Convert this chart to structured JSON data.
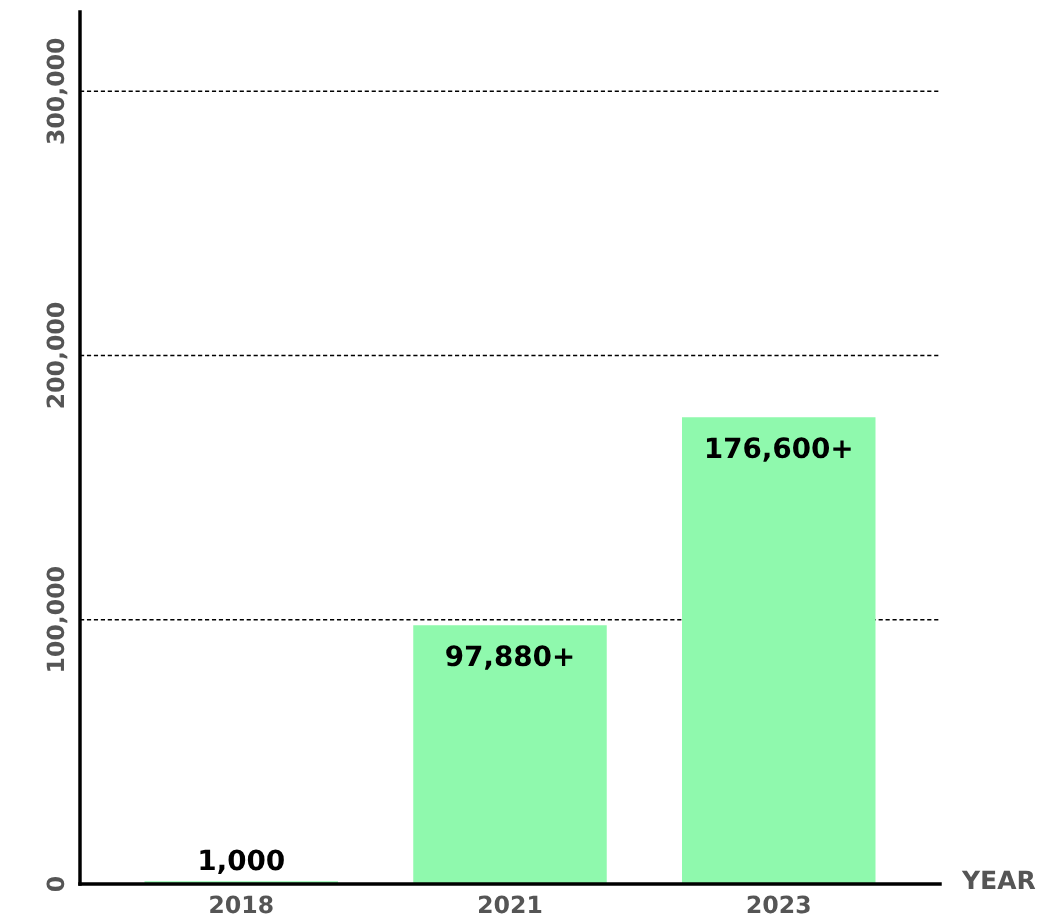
{
  "chart_data": {
    "type": "bar",
    "xlabel": "YEAR",
    "categories": [
      "2018",
      "2021",
      "2023"
    ],
    "values": [
      1000,
      97880,
      176600
    ],
    "value_labels": [
      "1,000",
      "97,880+",
      "176,600+"
    ],
    "color": "#8ff9ad",
    "ylim": [
      0,
      330000
    ],
    "yticks": [
      {
        "value": 0,
        "label": "0"
      },
      {
        "value": 100000,
        "label": "100,000"
      },
      {
        "value": 200000,
        "label": "200,000"
      },
      {
        "value": 300000,
        "label": "300,000"
      }
    ],
    "grid": "y"
  }
}
